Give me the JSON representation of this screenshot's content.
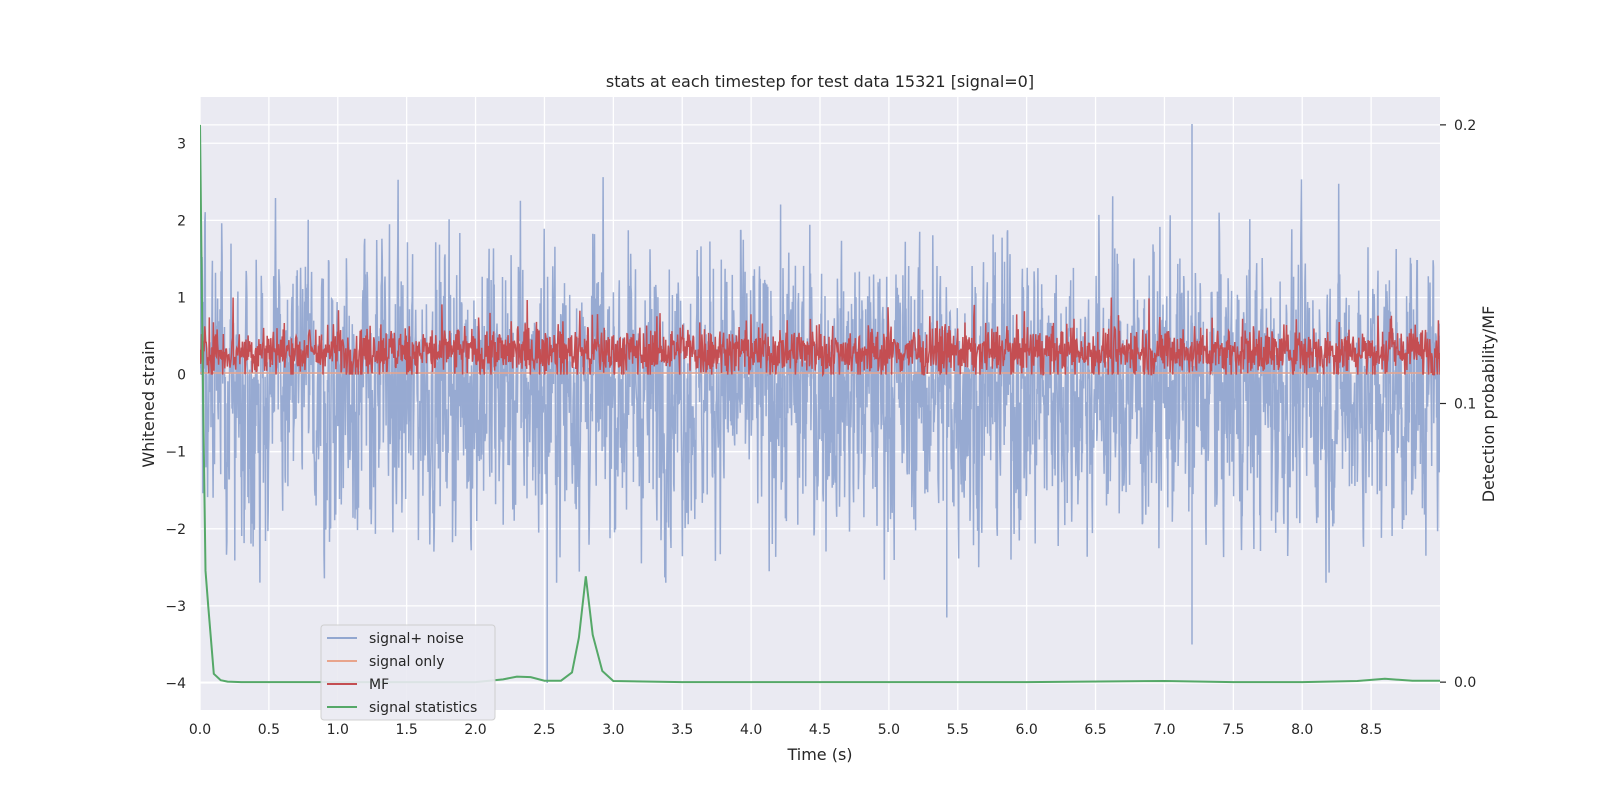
{
  "chart_data": {
    "type": "line",
    "title": "stats at each timestep for test data 15321 [signal=0]",
    "xlabel": "Time (s)",
    "ylabel": "Whitened strain",
    "y2label": "Detection probability/MF",
    "xlim": [
      0,
      9.0
    ],
    "ylim": [
      -4.35,
      3.6
    ],
    "y2lim": [
      -0.01,
      0.21
    ],
    "x_ticks": [
      "0.0",
      "0.5",
      "1.0",
      "1.5",
      "2.0",
      "2.5",
      "3.0",
      "3.5",
      "4.0",
      "4.5",
      "5.0",
      "5.5",
      "6.0",
      "6.5",
      "7.0",
      "7.5",
      "8.0",
      "8.5"
    ],
    "y_ticks": [
      "−4",
      "−3",
      "−2",
      "−1",
      "0",
      "1",
      "2",
      "3"
    ],
    "y2_ticks": [
      "0.0",
      "0.1",
      "0.2"
    ],
    "grid": true,
    "legend_position": "lower-left",
    "series": [
      {
        "name": "signal+ noise",
        "color": "#92a7d0",
        "axis": "left",
        "description_values": "dense noise oscillating roughly between -2.5 and 2.5 with extremes at x≈7.2 (3.25, -3.5) and x≈2.52 (-4.0)",
        "peaks": [
          [
            0.0,
            3.2
          ],
          [
            2.52,
            -4.0
          ],
          [
            5.42,
            -3.15
          ],
          [
            7.2,
            3.25
          ],
          [
            7.2,
            -3.5
          ]
        ]
      },
      {
        "name": "signal only",
        "color": "#e8a48c",
        "axis": "left",
        "x": [
          0,
          9.0
        ],
        "y": [
          0.02,
          0.02
        ]
      },
      {
        "name": "MF",
        "color": "#c44e52",
        "axis": "left",
        "description_values": "dense trace between 0 and about 1.0, mean around 0.3"
      },
      {
        "name": "signal statistics",
        "color": "#55a868",
        "axis": "right",
        "x": [
          0.0,
          0.02,
          0.04,
          0.06,
          0.1,
          0.15,
          0.2,
          0.3,
          0.5,
          1.0,
          1.5,
          2.0,
          2.2,
          2.3,
          2.4,
          2.5,
          2.62,
          2.7,
          2.75,
          2.8,
          2.85,
          2.92,
          3.0,
          3.5,
          4.0,
          5.0,
          6.0,
          7.0,
          7.5,
          8.0,
          8.4,
          8.6,
          8.8,
          9.0
        ],
        "y": [
          0.2,
          0.11,
          0.04,
          0.027,
          0.003,
          0.0007,
          0.0002,
          0.0,
          0.0,
          0.0,
          0.0,
          0.0,
          0.001,
          0.002,
          0.0018,
          0.0005,
          0.0005,
          0.0035,
          0.016,
          0.038,
          0.017,
          0.004,
          0.0004,
          0.0,
          0.0,
          0.0,
          0.0,
          0.0004,
          0.0,
          0.0,
          0.0004,
          0.0012,
          0.0005,
          0.0005
        ]
      }
    ]
  }
}
